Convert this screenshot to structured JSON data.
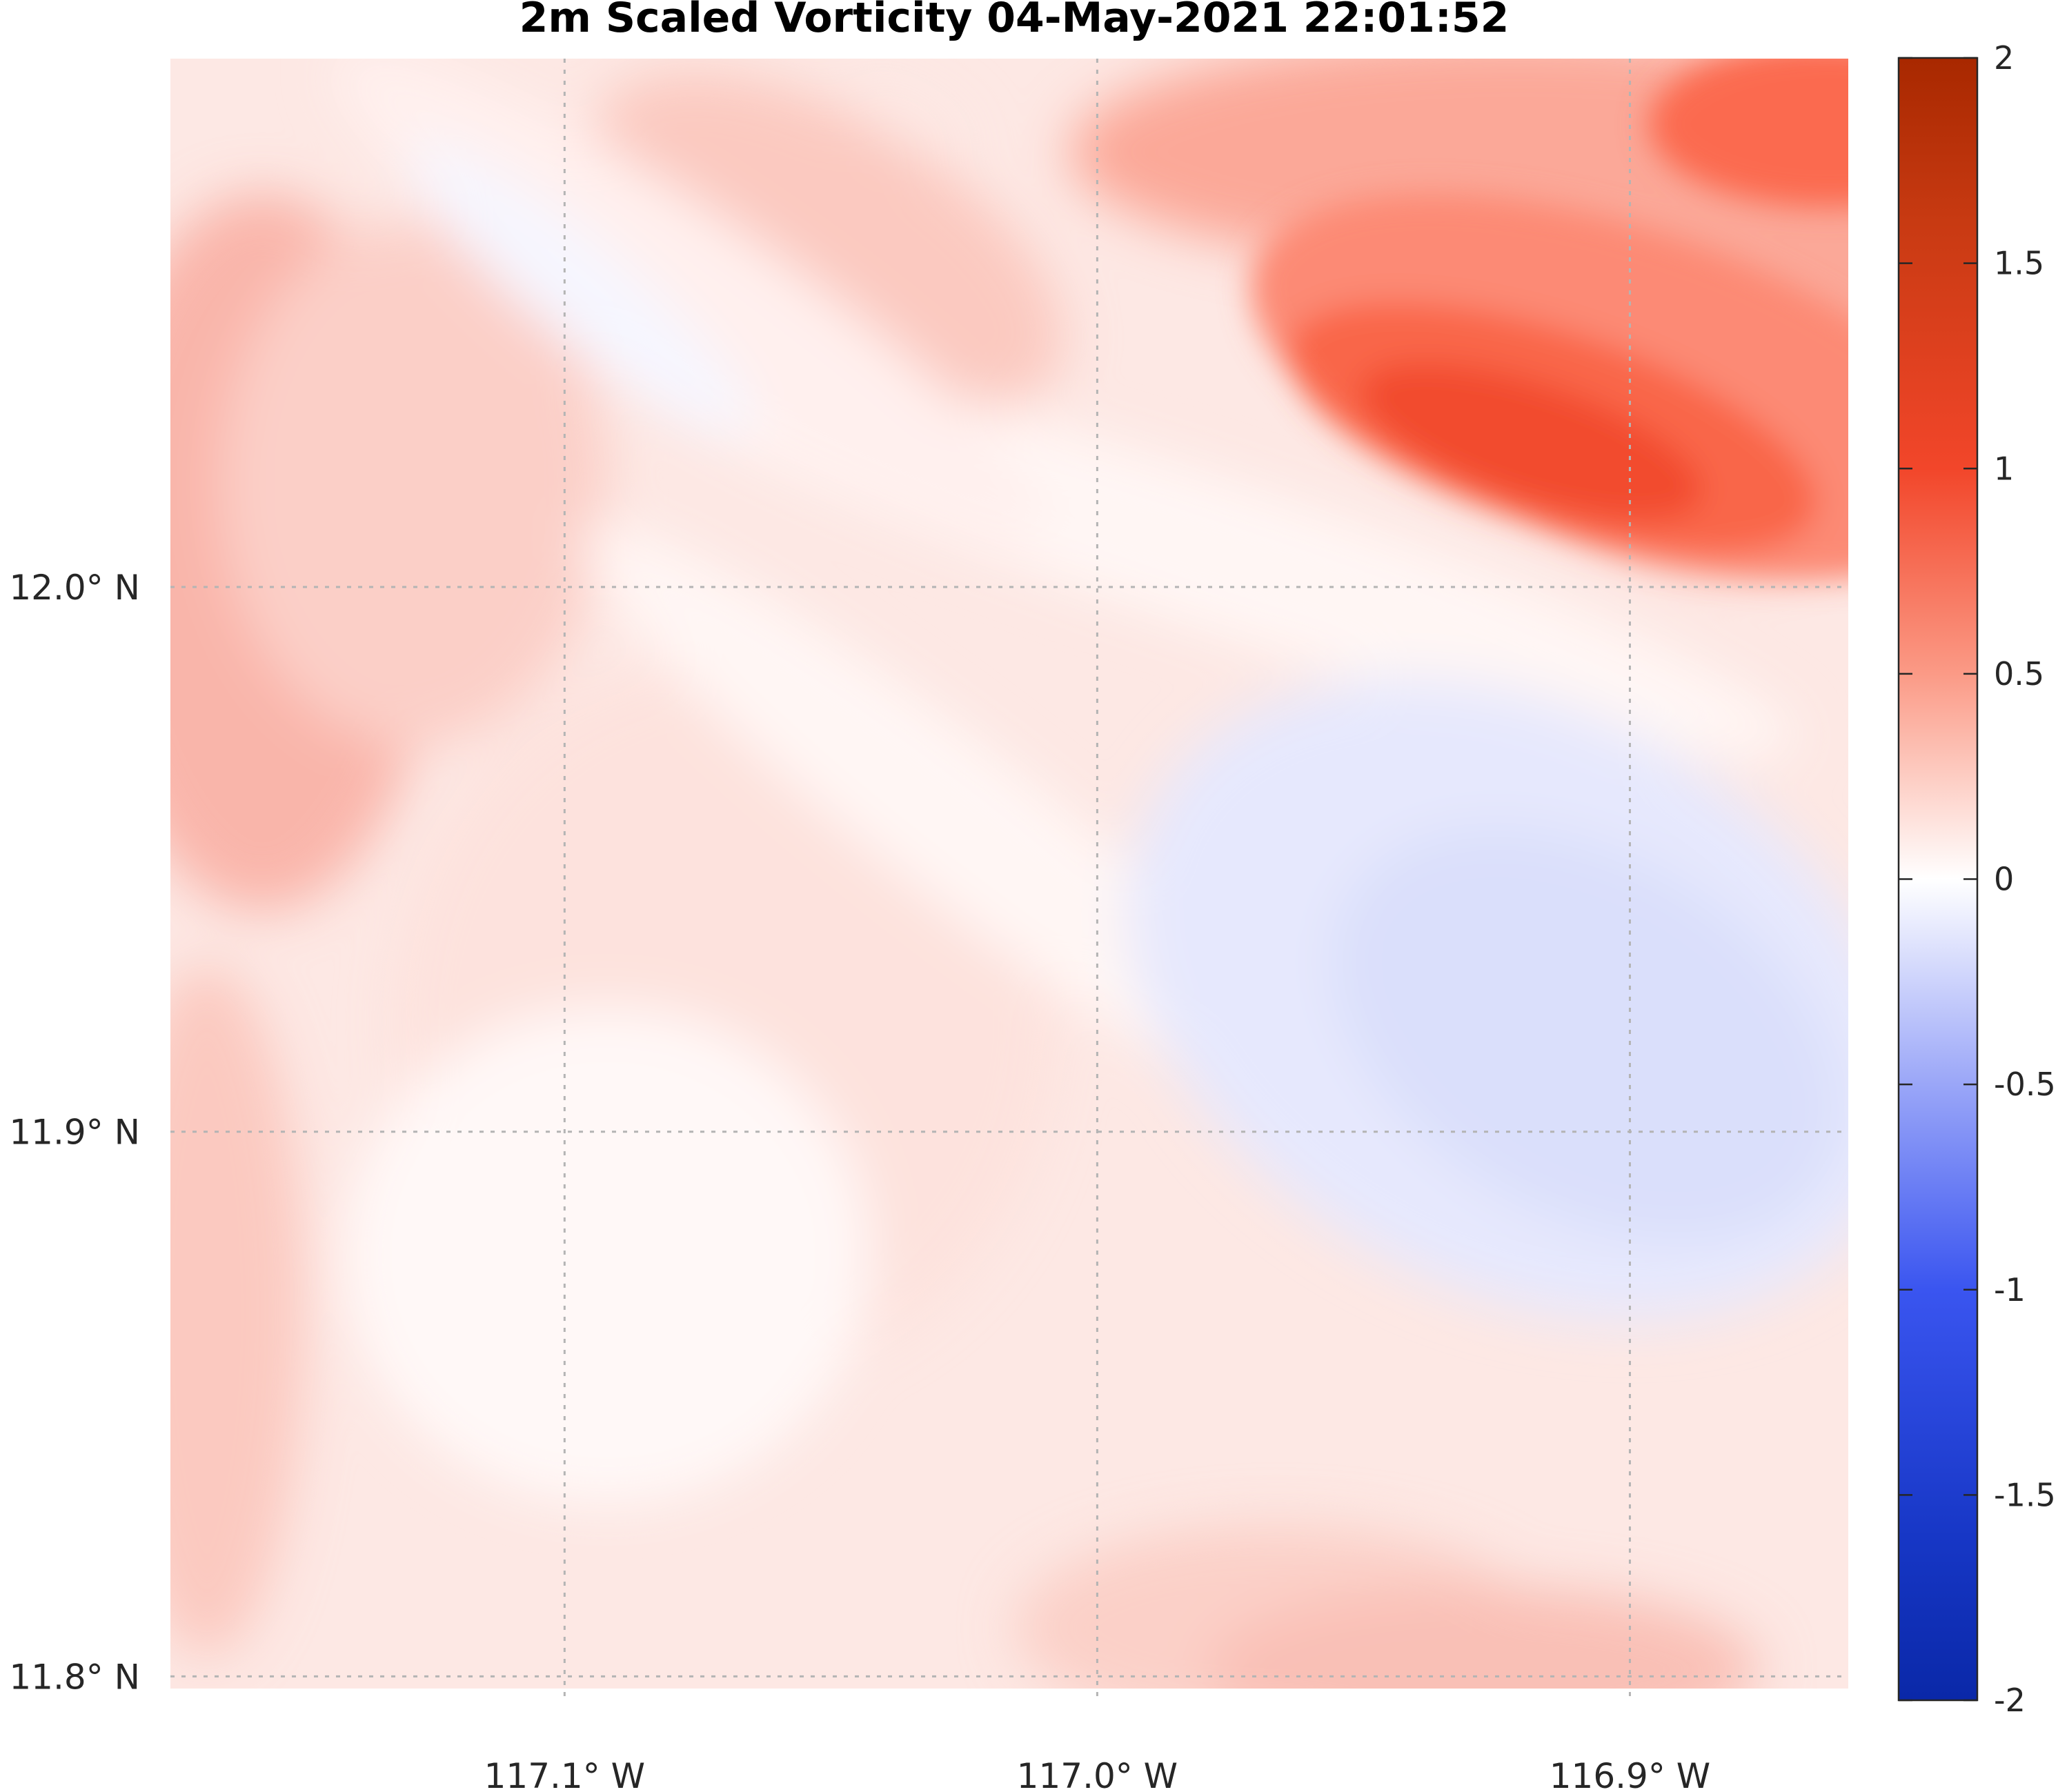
{
  "chart_data": {
    "type": "heatmap",
    "title": "2m Scaled Vorticity  04-May-2021 22:01:52",
    "xlabel": "",
    "ylabel": "",
    "x_ticks": [
      117.1,
      117.0,
      116.9
    ],
    "x_tick_labels": [
      "117.1° W",
      "117.0° W",
      "116.9° W"
    ],
    "y_ticks": [
      12.0,
      11.9,
      11.8
    ],
    "y_tick_labels": [
      "12.0° N",
      "11.9° N",
      "11.8° N"
    ],
    "xlim": [
      117.174,
      116.859
    ],
    "ylim": [
      11.796,
      12.097
    ],
    "grid": true,
    "colorbar": {
      "min": -2,
      "max": 2,
      "ticks": [
        2,
        1.5,
        1,
        0.5,
        0,
        -0.5,
        -1,
        -1.5,
        -2
      ],
      "tick_labels": [
        "2",
        "1.5",
        "1",
        "0.5",
        "0",
        "-0.5",
        "-1",
        "-1.5",
        "-2"
      ],
      "colors": {
        "neg_max": "#0a28a8",
        "neg_mid": "#3a55f0",
        "zero": "#ffffff",
        "pos_mid": "#f2462a",
        "pos_max": "#a82800"
      }
    },
    "features": [
      {
        "kind": "positive-max",
        "lon": 116.927,
        "lat": 12.022,
        "value": 1.0
      },
      {
        "kind": "positive",
        "lon": 116.86,
        "lat": 12.09,
        "value": 0.9
      },
      {
        "kind": "negative-min",
        "lon": 116.92,
        "lat": 11.92,
        "value": -0.15
      },
      {
        "kind": "near-zero",
        "lon": 117.09,
        "lat": 12.06,
        "value": -0.03
      },
      {
        "kind": "near-zero",
        "lon": 117.09,
        "lat": 11.87,
        "value": 0.05
      },
      {
        "kind": "positive",
        "lon": 117.165,
        "lat": 12.03,
        "value": 0.35
      }
    ]
  }
}
